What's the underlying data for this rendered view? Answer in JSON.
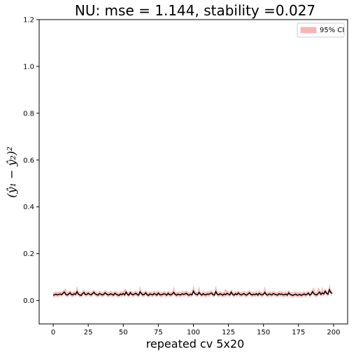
{
  "chart_data": {
    "type": "line",
    "title": "NU: mse = 1.144, stability =0.027",
    "xlabel": "repeated cv 5x20",
    "ylabel": "(ŷ₁ − ŷ₂)²",
    "xlim": [
      -10,
      210
    ],
    "ylim": [
      -0.1,
      1.2
    ],
    "xticks": [
      "0",
      "25",
      "50",
      "75",
      "100",
      "125",
      "150",
      "175",
      "200"
    ],
    "yticks": [
      "0.0",
      "0.2",
      "0.4",
      "0.6",
      "0.8",
      "1.0",
      "1.2"
    ],
    "grid": false,
    "legend": {
      "placement": "top-right",
      "entries": [
        "95% CI"
      ]
    },
    "colors": {
      "line": "#000000",
      "band": "#f8b4b4"
    },
    "series": [
      {
        "kind": "line",
        "x": [
          0,
          1,
          2,
          3,
          4,
          5,
          6,
          7,
          8,
          9,
          10,
          11,
          12,
          13,
          14,
          15,
          16,
          17,
          18,
          19,
          20,
          21,
          22,
          23,
          24,
          25,
          26,
          27,
          28,
          29,
          30,
          31,
          32,
          33,
          34,
          35,
          36,
          37,
          38,
          39,
          40,
          41,
          42,
          43,
          44,
          45,
          46,
          47,
          48,
          49,
          50,
          51,
          52,
          53,
          54,
          55,
          56,
          57,
          58,
          59,
          60,
          61,
          62,
          63,
          64,
          65,
          66,
          67,
          68,
          69,
          70,
          71,
          72,
          73,
          74,
          75,
          76,
          77,
          78,
          79,
          80,
          81,
          82,
          83,
          84,
          85,
          86,
          87,
          88,
          89,
          90,
          91,
          92,
          93,
          94,
          95,
          96,
          97,
          98,
          99,
          100,
          101,
          102,
          103,
          104,
          105,
          106,
          107,
          108,
          109,
          110,
          111,
          112,
          113,
          114,
          115,
          116,
          117,
          118,
          119,
          120,
          121,
          122,
          123,
          124,
          125,
          126,
          127,
          128,
          129,
          130,
          131,
          132,
          133,
          134,
          135,
          136,
          137,
          138,
          139,
          140,
          141,
          142,
          143,
          144,
          145,
          146,
          147,
          148,
          149,
          150,
          151,
          152,
          153,
          154,
          155,
          156,
          157,
          158,
          159,
          160,
          161,
          162,
          163,
          164,
          165,
          166,
          167,
          168,
          169,
          170,
          171,
          172,
          173,
          174,
          175,
          176,
          177,
          178,
          179,
          180,
          181,
          182,
          183,
          184,
          185,
          186,
          187,
          188,
          189,
          190,
          191,
          192,
          193,
          194,
          195,
          196,
          197,
          198,
          199
        ],
        "y": [
          0.022,
          0.025,
          0.027,
          0.024,
          0.026,
          0.028,
          0.025,
          0.031,
          0.036,
          0.026,
          0.023,
          0.028,
          0.033,
          0.025,
          0.024,
          0.029,
          0.026,
          0.038,
          0.027,
          0.024,
          0.022,
          0.03,
          0.034,
          0.025,
          0.026,
          0.031,
          0.027,
          0.024,
          0.029,
          0.035,
          0.028,
          0.025,
          0.023,
          0.03,
          0.027,
          0.024,
          0.026,
          0.033,
          0.028,
          0.024,
          0.025,
          0.029,
          0.026,
          0.023,
          0.031,
          0.027,
          0.024,
          0.022,
          0.028,
          0.025,
          0.03,
          0.024,
          0.036,
          0.026,
          0.023,
          0.034,
          0.027,
          0.024,
          0.028,
          0.031,
          0.025,
          0.023,
          0.037,
          0.029,
          0.024,
          0.026,
          0.033,
          0.025,
          0.022,
          0.028,
          0.026,
          0.024,
          0.03,
          0.027,
          0.023,
          0.032,
          0.025,
          0.024,
          0.026,
          0.029,
          0.027,
          0.023,
          0.031,
          0.025,
          0.024,
          0.028,
          0.035,
          0.026,
          0.023,
          0.027,
          0.025,
          0.024,
          0.029,
          0.026,
          0.028,
          0.031,
          0.025,
          0.023,
          0.027,
          0.024,
          0.04,
          0.03,
          0.026,
          0.024,
          0.035,
          0.027,
          0.023,
          0.029,
          0.025,
          0.024,
          0.028,
          0.026,
          0.03,
          0.032,
          0.025,
          0.023,
          0.038,
          0.027,
          0.024,
          0.029,
          0.026,
          0.023,
          0.028,
          0.025,
          0.031,
          0.027,
          0.024,
          0.036,
          0.026,
          0.023,
          0.029,
          0.025,
          0.032,
          0.027,
          0.024,
          0.026,
          0.03,
          0.025,
          0.023,
          0.028,
          0.033,
          0.026,
          0.024,
          0.027,
          0.025,
          0.029,
          0.023,
          0.031,
          0.026,
          0.024,
          0.027,
          0.035,
          0.025,
          0.023,
          0.028,
          0.026,
          0.024,
          0.03,
          0.027,
          0.025,
          0.023,
          0.029,
          0.026,
          0.028,
          0.024,
          0.025,
          0.027,
          0.023,
          0.033,
          0.026,
          0.024,
          0.022,
          0.025,
          0.027,
          0.023,
          0.024,
          0.026,
          0.022,
          0.025,
          0.028,
          0.024,
          0.026,
          0.032,
          0.023,
          0.027,
          0.038,
          0.029,
          0.025,
          0.024,
          0.03,
          0.036,
          0.026,
          0.033,
          0.028,
          0.04,
          0.031,
          0.027,
          0.046,
          0.034,
          0.03
        ]
      },
      {
        "kind": "band",
        "name": "95% CI",
        "lower_offset": 0.01,
        "upper_offset": 0.012,
        "note_spikes": [
          9,
          17,
          51,
          62,
          86,
          100,
          104,
          116,
          123,
          151,
          186,
          189,
          192,
          197
        ]
      }
    ]
  }
}
